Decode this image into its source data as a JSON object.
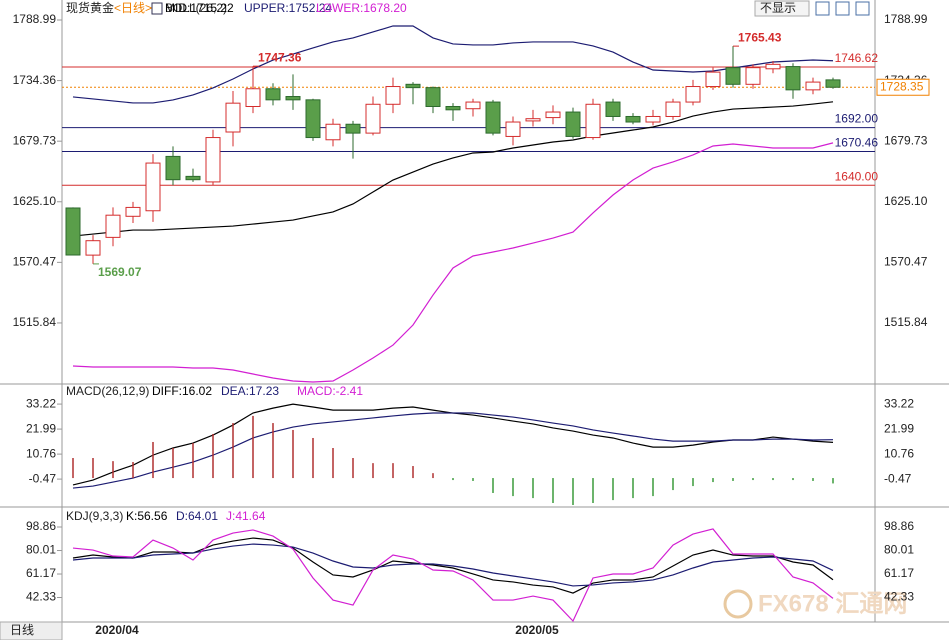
{
  "header": {
    "title": "现货黄金",
    "period": "<日线>",
    "button": "不显示",
    "timeframe_button": "日线",
    "watermark": "FX678 汇通网"
  },
  "chart_data": [
    {
      "type": "candlestick",
      "title": "BOLL(26,2)",
      "categories": [
        null,
        null,
        "2020/04",
        null,
        null,
        null,
        null,
        null,
        null,
        null,
        null,
        null,
        null,
        null,
        null,
        null,
        null,
        null,
        null,
        null,
        null,
        null,
        null,
        "2020/05",
        null,
        null,
        null,
        null,
        null,
        null,
        null,
        null,
        null,
        null,
        null,
        null,
        null,
        null,
        null
      ],
      "open": [
        1619.5,
        1577,
        1593,
        1612,
        1617,
        1666,
        1648,
        1643,
        1688,
        1711,
        1727,
        1720,
        1717,
        1681,
        1695,
        1687,
        1713,
        1731,
        1728,
        1711,
        1709,
        1715,
        1684,
        1698,
        1701,
        1706,
        1683,
        1715,
        1702,
        1697,
        1702,
        1715,
        1729,
        1746,
        1731,
        1745,
        1747,
        1726,
        1735
      ],
      "high": [
        1620,
        1595,
        1620,
        1625,
        1668,
        1675,
        1655,
        1690,
        1725,
        1747.36,
        1732,
        1740,
        1718,
        1700,
        1698,
        1720,
        1737,
        1733,
        1729,
        1714,
        1718,
        1717,
        1702,
        1708,
        1712,
        1710,
        1718,
        1718,
        1705,
        1708,
        1718,
        1735,
        1746,
        1765.43,
        1749,
        1752,
        1750,
        1737,
        1737
      ],
      "low": [
        1577,
        1569.07,
        1585,
        1606,
        1607,
        1640,
        1643,
        1640,
        1675,
        1705,
        1712,
        1708,
        1680,
        1675,
        1664,
        1685,
        1705,
        1713,
        1705,
        1698,
        1702,
        1685,
        1676,
        1693,
        1695,
        1682,
        1681,
        1698,
        1695,
        1694,
        1699,
        1712,
        1726,
        1728,
        1727,
        1741,
        1718,
        1722,
        1727
      ],
      "close": [
        1577.1,
        1590,
        1613,
        1620,
        1660,
        1645,
        1645,
        1683,
        1714,
        1727,
        1717,
        1717,
        1683,
        1695,
        1687,
        1713,
        1729,
        1728,
        1711,
        1708,
        1715,
        1687,
        1697,
        1700,
        1706,
        1684,
        1713,
        1702,
        1697,
        1702,
        1715,
        1729,
        1742,
        1731,
        1746,
        1749,
        1726,
        1733,
        1728.35
      ],
      "up_color": "#d42c2c",
      "down_color": "#5a9e4a",
      "series": [
        {
          "name": "MID",
          "label": "MID:1715.22",
          "color": "#000000",
          "values": [
            1594.2,
            1596.0,
            1597.8,
            1599.6,
            1599.6,
            1600.5,
            1601.4,
            1602.3,
            1603.2,
            1605.0,
            1606.8,
            1608.6,
            1612.3,
            1615.9,
            1623.1,
            1633.9,
            1644.7,
            1651.9,
            1659.1,
            1664.6,
            1669.1,
            1670.0,
            1673.6,
            1676.3,
            1679.0,
            1680.8,
            1684.4,
            1687.1,
            1689.8,
            1692.5,
            1697.0,
            1702.4,
            1706.0,
            1708.7,
            1709.6,
            1710.5,
            1711.4,
            1713.2,
            1715.22
          ]
        },
        {
          "name": "UPPER",
          "label": "UPPER:1752.24",
          "color": "#1c1c72",
          "values": [
            1719.6,
            1717.8,
            1716.0,
            1714.2,
            1714.2,
            1716.9,
            1721.4,
            1727.7,
            1735.8,
            1744.8,
            1752.9,
            1758.3,
            1763.8,
            1769.2,
            1772.8,
            1778.2,
            1783.6,
            1783.6,
            1772.8,
            1767.4,
            1766.5,
            1766.5,
            1768.3,
            1769.2,
            1769.2,
            1769.2,
            1765.6,
            1760.1,
            1751.1,
            1743.9,
            1743.0,
            1742.1,
            1743.0,
            1745.7,
            1748.4,
            1751.1,
            1752.0,
            1752.9,
            1752.24
          ]
        },
        {
          "name": "LOWER",
          "label": "LOWER:1678.20",
          "color": "#d21fd2",
          "values": [
            1477.0,
            1476.1,
            1476.1,
            1476.1,
            1476.1,
            1476.1,
            1475.2,
            1475.2,
            1473.4,
            1469.8,
            1466.2,
            1463.5,
            1462.6,
            1463.5,
            1473.4,
            1484.2,
            1495.9,
            1514.0,
            1541.0,
            1565.4,
            1576.2,
            1579.8,
            1583.4,
            1587.9,
            1592.4,
            1597.8,
            1615.0,
            1631.2,
            1644.7,
            1655.5,
            1661.0,
            1667.3,
            1675.4,
            1677.2,
            1675.4,
            1673.6,
            1673.6,
            1673.6,
            1678.2
          ]
        }
      ],
      "ylim": [
        1461.7,
        1798.0
      ],
      "yticks": [
        1788.99,
        1734.36,
        1679.73,
        {
          "value": 1625.1,
          "label": "1625.10"
        },
        1570.47,
        1515.84
      ],
      "reference_lines": [
        {
          "value": 1746.62,
          "label": "1746.62",
          "color": "#d42c2c",
          "style": "solid"
        },
        {
          "value": 1728.35,
          "label": "1728.35",
          "color": "#f08000",
          "style": "dotted"
        },
        {
          "value": 1692.0,
          "label": "1692.00",
          "color": "#1c1c72",
          "style": "solid"
        },
        {
          "value": 1670.46,
          "label": "1670.46",
          "color": "#1c1c72",
          "style": "solid"
        },
        {
          "value": 1640.0,
          "label": "1640.00",
          "color": "#d42c2c",
          "style": "solid"
        }
      ],
      "annotations": [
        {
          "index": 9,
          "value": 1747.36,
          "label": "1747.36",
          "color": "#d42c2c"
        },
        {
          "index": 33,
          "value": 1765.43,
          "label": "1765.43",
          "color": "#d42c2c"
        },
        {
          "index": 1,
          "value": 1569.07,
          "label": "1569.07",
          "color": "#5a9e4a"
        }
      ]
    },
    {
      "type": "combo",
      "title": "MACD(26,12,9)",
      "series": [
        {
          "name": "DIFF",
          "label": "DIFF:16.02",
          "type": "line",
          "color": "#000000",
          "values": [
            -3.1,
            -0.9,
            2.7,
            5.8,
            10.3,
            13.5,
            15.7,
            19.3,
            23.8,
            29.2,
            31.4,
            33.2,
            31.9,
            30.5,
            30.5,
            30.5,
            31.4,
            31.9,
            30.5,
            29.2,
            28.3,
            27.0,
            25.6,
            24.3,
            22.5,
            21.1,
            19.3,
            18.0,
            15.7,
            13.9,
            13.9,
            14.8,
            16.2,
            17.1,
            17.1,
            18.4,
            17.5,
            16.6,
            16.02
          ]
        },
        {
          "name": "DEA",
          "label": "DEA:17.23",
          "type": "line",
          "color": "#1c1c72",
          "values": [
            -4.5,
            -3.6,
            -1.8,
            0,
            2.7,
            4.9,
            7.2,
            10.3,
            13.9,
            18.0,
            20.7,
            22.9,
            24.3,
            25.2,
            26.1,
            27.0,
            27.9,
            28.7,
            29.2,
            29.2,
            29.2,
            28.3,
            27.4,
            26.1,
            24.7,
            23.4,
            21.6,
            20.2,
            18.9,
            17.5,
            16.6,
            16.6,
            16.6,
            17.1,
            17.1,
            17.5,
            17.5,
            17.1,
            17.23
          ]
        },
        {
          "name": "MACD",
          "label": "MACD:-2.41",
          "type": "bar",
          "color": "#d21fd2",
          "up_color": "#b03030",
          "down_color": "#3a9a3a",
          "values": [
            9.0,
            9.0,
            7.6,
            7.2,
            16.2,
            13.5,
            15.7,
            19.8,
            24.7,
            27.9,
            24.7,
            21.6,
            18.0,
            13.5,
            9.0,
            6.7,
            6.7,
            5.4,
            2.2,
            -0.9,
            -1.3,
            -6.7,
            -8.1,
            -9.0,
            -11.2,
            -12.1,
            -11.2,
            -9.9,
            -9.0,
            -8.1,
            -5.4,
            -3.6,
            -1.8,
            -1.3,
            -0.9,
            -0.9,
            -0.9,
            -1.3,
            -2.41
          ]
        }
      ],
      "ylim": [
        -12.1,
        37.3
      ],
      "yticks": [
        33.22,
        21.99,
        10.76,
        -0.47
      ]
    },
    {
      "type": "line",
      "title": "KDJ(9,3,3)",
      "series": [
        {
          "name": "K",
          "label": "K:56.56",
          "color": "#000000",
          "values": [
            74.0,
            76.4,
            74.8,
            74.0,
            78.8,
            78.8,
            78.0,
            84.4,
            87.6,
            90.0,
            88.4,
            82.0,
            70.8,
            60.4,
            58.8,
            64.4,
            71.6,
            70.0,
            68.4,
            66.0,
            61.2,
            56.4,
            54.8,
            52.3,
            50.8,
            45.9,
            53.9,
            56.4,
            56.4,
            58.8,
            67.6,
            76.4,
            80.4,
            76.4,
            75.6,
            75.6,
            70.8,
            68.4,
            56.56
          ]
        },
        {
          "name": "D",
          "label": "D:64.01",
          "color": "#1c1c72",
          "values": [
            72.4,
            74.0,
            74.0,
            74.0,
            76.4,
            77.2,
            78.0,
            81.2,
            83.6,
            85.2,
            84.4,
            82.8,
            78.0,
            71.6,
            66.8,
            66.0,
            68.4,
            69.2,
            69.2,
            67.6,
            65.2,
            62.0,
            59.6,
            57.2,
            54.8,
            51.6,
            52.4,
            54.0,
            54.8,
            56.4,
            60.4,
            66.0,
            70.8,
            72.4,
            74.0,
            74.8,
            73.2,
            71.6,
            64.01
          ]
        },
        {
          "name": "J",
          "label": "J:41.64",
          "color": "#d21fd2",
          "values": [
            82.0,
            80.4,
            75.6,
            74.8,
            88.4,
            82.0,
            72.4,
            88.4,
            94.0,
            96.5,
            91.6,
            81.2,
            58.0,
            40.3,
            36.3,
            64.4,
            76.4,
            73.2,
            64.4,
            63.6,
            56.4,
            40.3,
            40.3,
            43.5,
            40.3,
            23.5,
            58.0,
            61.2,
            61.2,
            66.0,
            84.4,
            93.2,
            97.3,
            77.2,
            77.2,
            77.2,
            58.8,
            54.0,
            41.64
          ]
        }
      ],
      "ylim": [
        24.3,
        112.5
      ],
      "yticks": [
        98.86,
        80.01,
        61.17,
        42.33
      ]
    }
  ]
}
